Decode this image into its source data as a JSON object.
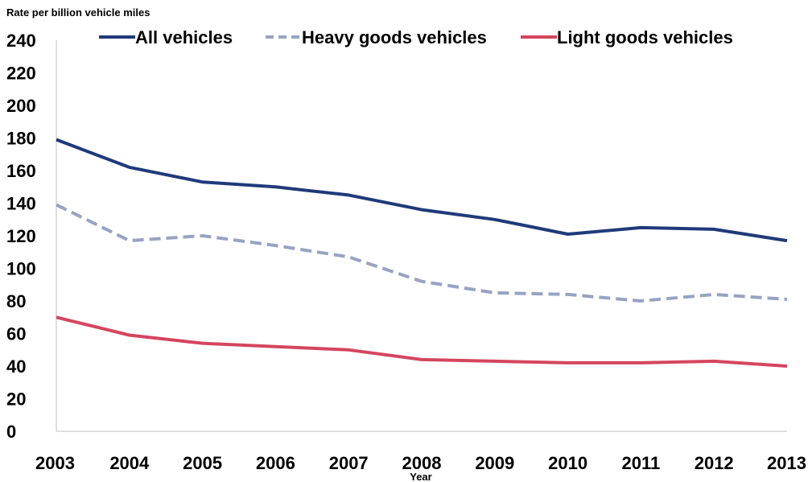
{
  "chart_data": {
    "type": "line",
    "title": "",
    "ylabel": "Rate per billion vehicle miles",
    "xlabel": "Year",
    "x": [
      "2003",
      "2004",
      "2005",
      "2006",
      "2007",
      "2008",
      "2009",
      "2010",
      "2011",
      "2012",
      "2013"
    ],
    "ylim": [
      0,
      240
    ],
    "yticks": [
      "0",
      "20",
      "40",
      "60",
      "80",
      "100",
      "120",
      "140",
      "160",
      "180",
      "200",
      "220",
      "240"
    ],
    "grid": false,
    "legend_position": "top",
    "series": [
      {
        "name": "All vehicles",
        "values": [
          179,
          162,
          153,
          150,
          145,
          136,
          130,
          121,
          125,
          124,
          117
        ],
        "color": "#1f3a7a",
        "dash": "solid"
      },
      {
        "name": "Heavy goods vehicles",
        "values": [
          139,
          117,
          120,
          114,
          107,
          92,
          85,
          84,
          80,
          84,
          81
        ],
        "color": "#97a3c3",
        "dash": "dashed"
      },
      {
        "name": "Light goods vehicles",
        "values": [
          70,
          59,
          54,
          52,
          50,
          44,
          43,
          42,
          42,
          43,
          40
        ],
        "color": "#d5455e",
        "dash": "solid"
      }
    ]
  }
}
